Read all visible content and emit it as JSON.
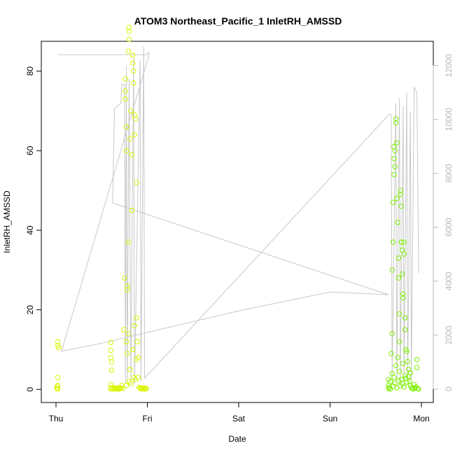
{
  "chart_data": {
    "type": "scatter",
    "title": "ATOM3 Northeast_Pacific_1 InletRH_AMSSD",
    "xlabel": "Date",
    "ylabel": "InletRH_AMSSD",
    "x_ticks": [
      "Thu",
      "Fri",
      "Sat",
      "Sun",
      "Mon"
    ],
    "x_range_days": [
      0,
      4.0
    ],
    "ylim": [
      -3.3,
      87.5
    ],
    "y_ticks": [
      0,
      20,
      40,
      60,
      80
    ],
    "y2lim": [
      -500,
      12900
    ],
    "y2_ticks": [
      0,
      2000,
      4000,
      6000,
      8000,
      10000,
      12000
    ],
    "grid": false,
    "line_color": "#c8c8c8",
    "point_color_early": "#d9f500",
    "point_color_late": "#7cf000",
    "series": [
      {
        "kind": "line",
        "axis": "right",
        "points": [
          [
            0.02,
            12400
          ],
          [
            0.06,
            12400
          ],
          [
            0.14,
            12400
          ],
          [
            0.3,
            12400
          ],
          [
            0.5,
            12400
          ],
          [
            0.7,
            12400
          ],
          [
            0.95,
            12400
          ],
          [
            1.0,
            12400
          ],
          [
            1.01,
            12500
          ],
          [
            1.02,
            12400
          ],
          [
            0.06,
            1400
          ],
          [
            0.5,
            1700
          ],
          [
            1.0,
            2100
          ],
          [
            2.0,
            2900
          ],
          [
            3.0,
            3600
          ],
          [
            3.64,
            3500
          ],
          [
            0.62,
            6900
          ],
          [
            0.64,
            10400
          ],
          [
            0.71,
            10600
          ],
          [
            0.72,
            11300
          ],
          [
            0.75,
            11300
          ],
          [
            0.76,
            200
          ],
          [
            0.77,
            12000
          ],
          [
            0.78,
            200
          ],
          [
            0.8,
            11500
          ],
          [
            0.82,
            300
          ],
          [
            0.85,
            12300
          ],
          [
            0.86,
            200
          ],
          [
            0.92,
            12200
          ],
          [
            0.93,
            300
          ],
          [
            0.96,
            12700
          ],
          [
            0.97,
            400
          ],
          [
            3.65,
            10200
          ],
          [
            3.67,
            10200
          ],
          [
            3.68,
            300
          ],
          [
            3.72,
            10600
          ],
          [
            3.73,
            300
          ],
          [
            3.76,
            10800
          ],
          [
            3.77,
            300
          ],
          [
            3.8,
            10500
          ],
          [
            3.81,
            300
          ],
          [
            3.84,
            11000
          ],
          [
            3.85,
            300
          ],
          [
            3.88,
            10300
          ],
          [
            3.89,
            300
          ],
          [
            3.92,
            11200
          ],
          [
            3.95,
            11000
          ],
          [
            3.97,
            4300
          ]
        ]
      },
      {
        "kind": "points",
        "axis": "left",
        "name": "InletRH_AMSSD",
        "points": [
          [
            0.01,
            0.2
          ],
          [
            0.01,
            0.6
          ],
          [
            0.02,
            1.0
          ],
          [
            0.02,
            0.1
          ],
          [
            0.02,
            3.0
          ],
          [
            0.02,
            12.0
          ],
          [
            0.02,
            11.0
          ],
          [
            0.03,
            10.5
          ],
          [
            0.6,
            0.1
          ],
          [
            0.6,
            0.4
          ],
          [
            0.6,
            1.2
          ],
          [
            0.6,
            8.0
          ],
          [
            0.6,
            9.8
          ],
          [
            0.6,
            11.8
          ],
          [
            0.61,
            4.8
          ],
          [
            0.61,
            6.9
          ],
          [
            0.62,
            0.3
          ],
          [
            0.63,
            0.1
          ],
          [
            0.64,
            0.5
          ],
          [
            0.65,
            0.2
          ],
          [
            0.66,
            0.1
          ],
          [
            0.67,
            0.3
          ],
          [
            0.68,
            0.2
          ],
          [
            0.69,
            0.1
          ],
          [
            0.7,
            0.4
          ],
          [
            0.71,
            0.2
          ],
          [
            0.72,
            1.0
          ],
          [
            0.73,
            0.3
          ],
          [
            0.74,
            15.0
          ],
          [
            0.75,
            28.0
          ],
          [
            0.76,
            73.0
          ],
          [
            0.76,
            75.0
          ],
          [
            0.76,
            78.0
          ],
          [
            0.77,
            60.0
          ],
          [
            0.77,
            66.0
          ],
          [
            0.77,
            12.0
          ],
          [
            0.78,
            25.0
          ],
          [
            0.78,
            26.0
          ],
          [
            0.79,
            37.0
          ],
          [
            0.79,
            85.0
          ],
          [
            0.8,
            90.0
          ],
          [
            0.8,
            91.0
          ],
          [
            0.8,
            88.0
          ],
          [
            0.81,
            63.0
          ],
          [
            0.82,
            70.0
          ],
          [
            0.83,
            59.0
          ],
          [
            0.83,
            45.0
          ],
          [
            0.84,
            84.0
          ],
          [
            0.84,
            82.0
          ],
          [
            0.85,
            80.0
          ],
          [
            0.85,
            77.0
          ],
          [
            0.86,
            64.0
          ],
          [
            0.86,
            69.0
          ],
          [
            0.87,
            68.0
          ],
          [
            0.88,
            52.0
          ],
          [
            0.88,
            18.0
          ],
          [
            0.89,
            12.0
          ],
          [
            0.9,
            3.0
          ],
          [
            0.91,
            0.5
          ],
          [
            0.92,
            0.3
          ],
          [
            0.93,
            0.2
          ],
          [
            0.94,
            0.1
          ],
          [
            0.95,
            0.4
          ],
          [
            0.96,
            0.2
          ],
          [
            0.97,
            0.1
          ],
          [
            0.98,
            0.3
          ],
          [
            0.99,
            0.2
          ],
          [
            0.8,
            2.0
          ],
          [
            0.82,
            1.5
          ],
          [
            0.85,
            3.0
          ],
          [
            0.87,
            2.5
          ],
          [
            0.78,
            9.0
          ],
          [
            0.79,
            14.0
          ],
          [
            0.86,
            16.0
          ],
          [
            0.88,
            7.5
          ],
          [
            0.81,
            5.0
          ],
          [
            0.84,
            10.0
          ],
          [
            0.9,
            8.0
          ],
          [
            0.77,
            1.0
          ],
          [
            3.64,
            0.2
          ],
          [
            3.64,
            1.0
          ],
          [
            3.64,
            2.5
          ],
          [
            3.65,
            0.5
          ],
          [
            3.66,
            0.1
          ],
          [
            3.67,
            9.0
          ],
          [
            3.68,
            14.0
          ],
          [
            3.68,
            30.0
          ],
          [
            3.69,
            37.0
          ],
          [
            3.69,
            47.0
          ],
          [
            3.7,
            54.0
          ],
          [
            3.7,
            58.0
          ],
          [
            3.7,
            61.0
          ],
          [
            3.71,
            60.0
          ],
          [
            3.71,
            56.0
          ],
          [
            3.72,
            68.0
          ],
          [
            3.72,
            67.0
          ],
          [
            3.73,
            62.0
          ],
          [
            3.73,
            48.0
          ],
          [
            3.74,
            42.0
          ],
          [
            3.75,
            33.0
          ],
          [
            3.75,
            28.0
          ],
          [
            3.76,
            19.0
          ],
          [
            3.76,
            12.0
          ],
          [
            3.77,
            50.0
          ],
          [
            3.77,
            49.0
          ],
          [
            3.78,
            46.0
          ],
          [
            3.78,
            37.0
          ],
          [
            3.79,
            35.0
          ],
          [
            3.79,
            29.0
          ],
          [
            3.8,
            24.0
          ],
          [
            3.8,
            23.0
          ],
          [
            3.81,
            37.0
          ],
          [
            3.81,
            34.0
          ],
          [
            3.82,
            18.0
          ],
          [
            3.82,
            15.0
          ],
          [
            3.83,
            10.0
          ],
          [
            3.84,
            9.5
          ],
          [
            3.85,
            7.0
          ],
          [
            3.86,
            5.0
          ],
          [
            3.87,
            2.0
          ],
          [
            3.88,
            1.0
          ],
          [
            3.89,
            0.5
          ],
          [
            3.9,
            0.2
          ],
          [
            3.91,
            0.1
          ],
          [
            3.92,
            1.2
          ],
          [
            3.93,
            0.3
          ],
          [
            3.94,
            0.6
          ],
          [
            3.95,
            7.5
          ],
          [
            3.95,
            5.5
          ],
          [
            3.96,
            0.2
          ],
          [
            3.97,
            0.1
          ],
          [
            3.66,
            2.0
          ],
          [
            3.68,
            4.0
          ],
          [
            3.7,
            3.0
          ],
          [
            3.72,
            6.0
          ],
          [
            3.74,
            8.0
          ],
          [
            3.76,
            4.5
          ],
          [
            3.78,
            2.5
          ],
          [
            3.8,
            6.5
          ],
          [
            3.82,
            3.5
          ],
          [
            3.84,
            1.8
          ],
          [
            3.86,
            3.2
          ],
          [
            3.88,
            4.2
          ],
          [
            3.69,
            0.8
          ],
          [
            3.71,
            1.6
          ],
          [
            3.73,
            0.4
          ],
          [
            3.75,
            2.2
          ],
          [
            3.77,
            0.9
          ],
          [
            3.79,
            1.4
          ],
          [
            3.81,
            0.6
          ],
          [
            3.83,
            2.8
          ]
        ]
      }
    ]
  }
}
